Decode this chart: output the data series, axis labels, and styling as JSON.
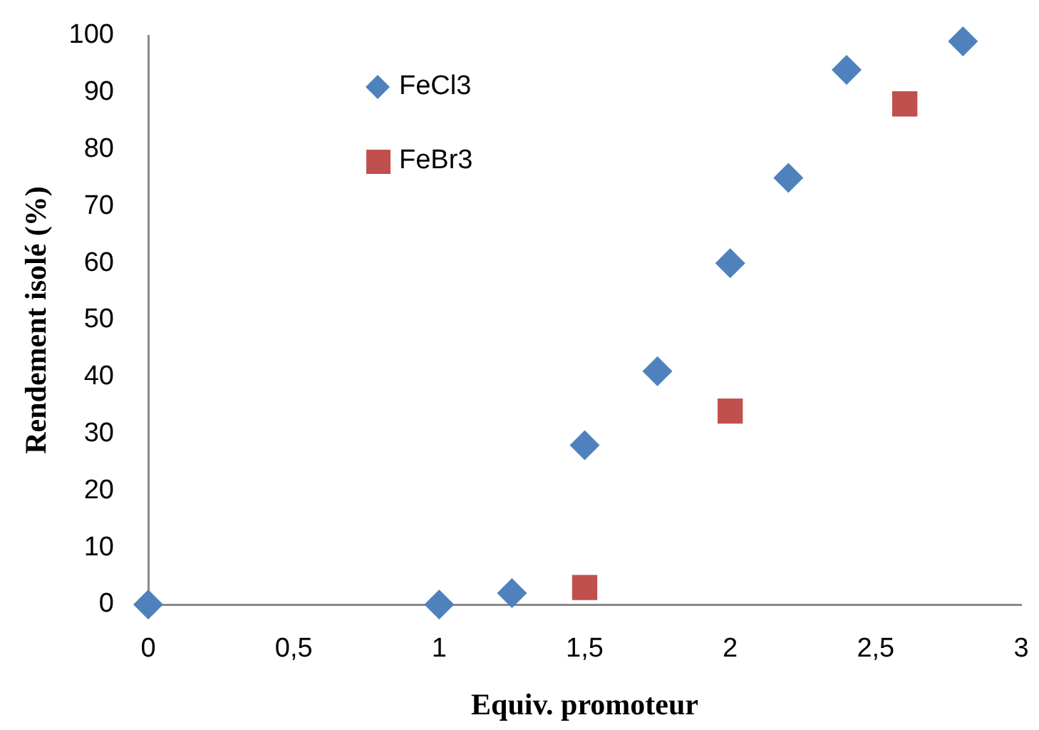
{
  "chart_data": {
    "type": "scatter",
    "xlabel": "Equiv. promoteur",
    "ylabel": "Rendement isolé (%)",
    "xlim": [
      0,
      3
    ],
    "xticks": [
      0,
      {
        "value": 0.5,
        "label": "0,5"
      },
      1,
      {
        "value": 1.5,
        "label": "1,5"
      },
      2,
      {
        "value": 2.5,
        "label": "2,5"
      },
      3
    ],
    "ylim": [
      0,
      100
    ],
    "yticks": [
      0,
      10,
      20,
      30,
      40,
      50,
      60,
      70,
      80,
      90,
      100
    ],
    "grid": false,
    "legend": "top left",
    "series": [
      {
        "name": "FeCl3",
        "color": "#4f81bd",
        "marker": "diamond",
        "x": [
          0,
          1,
          1.25,
          1.5,
          1.75,
          2,
          2.2,
          2.4,
          2.8
        ],
        "values": [
          0,
          0,
          2,
          28,
          41,
          60,
          75,
          94,
          99
        ]
      },
      {
        "name": "FeBr3",
        "color": "#c0504d",
        "marker": "square",
        "x": [
          1.5,
          2,
          2.6
        ],
        "values": [
          3,
          34,
          88
        ]
      }
    ]
  }
}
